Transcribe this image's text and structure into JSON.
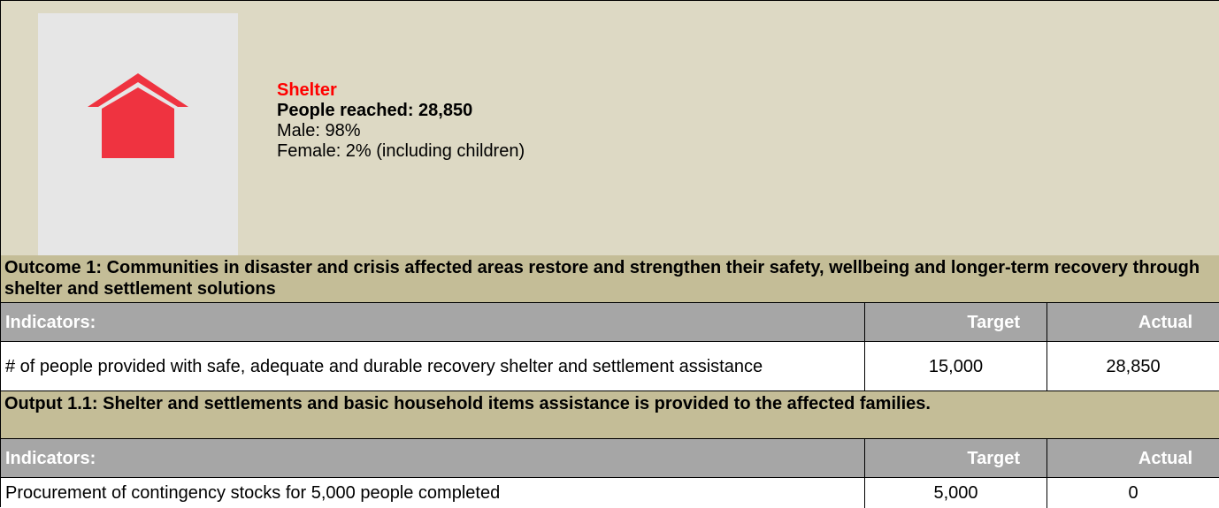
{
  "header": {
    "title": "Shelter",
    "people_reached": "People reached: 28,850",
    "male": "Male: 98%",
    "female": "Female: 2% (including children)"
  },
  "sections": [
    {
      "heading": "Outcome 1: Communities in disaster and crisis affected areas restore and strengthen their safety, wellbeing and longer-term recovery through shelter and settlement solutions",
      "columns": [
        "Indicators:",
        "Target",
        "Actual"
      ],
      "rows": [
        [
          "# of people provided with safe, adequate and durable recovery shelter and settlement assistance",
          "15,000",
          "28,850"
        ]
      ]
    },
    {
      "heading": "Output 1.1: Shelter and settlements and basic household items assistance is provided to the affected families.",
      "columns": [
        "Indicators:",
        "Target",
        "Actual"
      ],
      "rows": [
        [
          "Procurement of contingency stocks for 5,000 people completed",
          "5,000",
          "0"
        ]
      ]
    }
  ]
}
